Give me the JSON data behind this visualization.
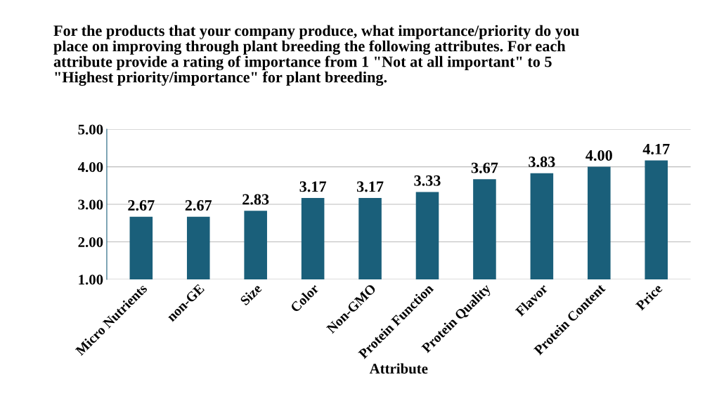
{
  "chart_data": {
    "type": "bar",
    "title": "For the products that your company produce, what importance/priority do you\nplace on improving through plant breeding the following attributes. For each\nattribute provide a rating of importance from 1 \"Not at all important\" to 5\n\"Highest priority/importance\" for plant breeding.",
    "xlabel": "Attribute",
    "categories": [
      "Micro Nutrients",
      "non-GE",
      "Size",
      "Color",
      "Non-GMO",
      "Protein Function",
      "Protein Quality",
      "Flavor",
      "Protein Content",
      "Price"
    ],
    "values": [
      2.67,
      2.67,
      2.83,
      3.17,
      3.17,
      3.33,
      3.67,
      3.83,
      4.0,
      4.17
    ],
    "value_labels": [
      "2.67",
      "2.67",
      "2.83",
      "3.17",
      "3.17",
      "3.33",
      "3.67",
      "3.83",
      "4.00",
      "4.17"
    ],
    "color": "#1a5f7a",
    "ylim": [
      1,
      5
    ],
    "yticks": [
      {
        "value": 1,
        "label": "1.00"
      },
      {
        "value": 2,
        "label": "2.00"
      },
      {
        "value": 3,
        "label": "3.00"
      },
      {
        "value": 4,
        "label": "4.00"
      },
      {
        "value": 5,
        "label": "5.00"
      }
    ],
    "grid": "y"
  }
}
